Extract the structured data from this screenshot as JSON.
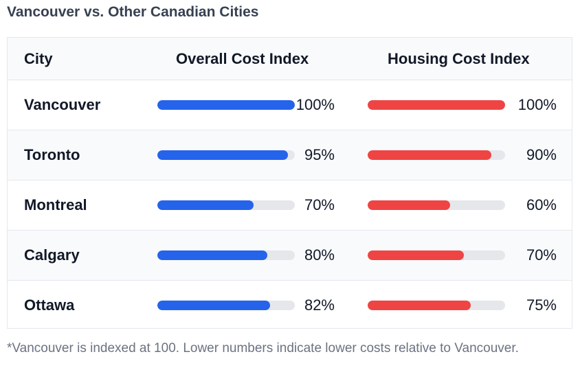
{
  "title": "Vancouver vs. Other Canadian Cities",
  "footnote": "*Vancouver is indexed at 100. Lower numbers indicate lower costs relative to Vancouver.",
  "colors": {
    "overall": "#2563eb",
    "housing": "#ef4444",
    "track": "#e5e7eb"
  },
  "chart_data": {
    "type": "table",
    "columns": [
      "City",
      "Overall Cost Index",
      "Housing Cost Index"
    ],
    "rows": [
      {
        "city": "Vancouver",
        "overall": 100,
        "overall_label": "100%",
        "housing": 100,
        "housing_label": "100%"
      },
      {
        "city": "Toronto",
        "overall": 95,
        "overall_label": "95%",
        "housing": 90,
        "housing_label": "90%"
      },
      {
        "city": "Montreal",
        "overall": 70,
        "overall_label": "70%",
        "housing": 60,
        "housing_label": "60%"
      },
      {
        "city": "Calgary",
        "overall": 80,
        "overall_label": "80%",
        "housing": 70,
        "housing_label": "70%"
      },
      {
        "city": "Ottawa",
        "overall": 82,
        "overall_label": "82%",
        "housing": 75,
        "housing_label": "75%"
      }
    ],
    "max": 100
  }
}
